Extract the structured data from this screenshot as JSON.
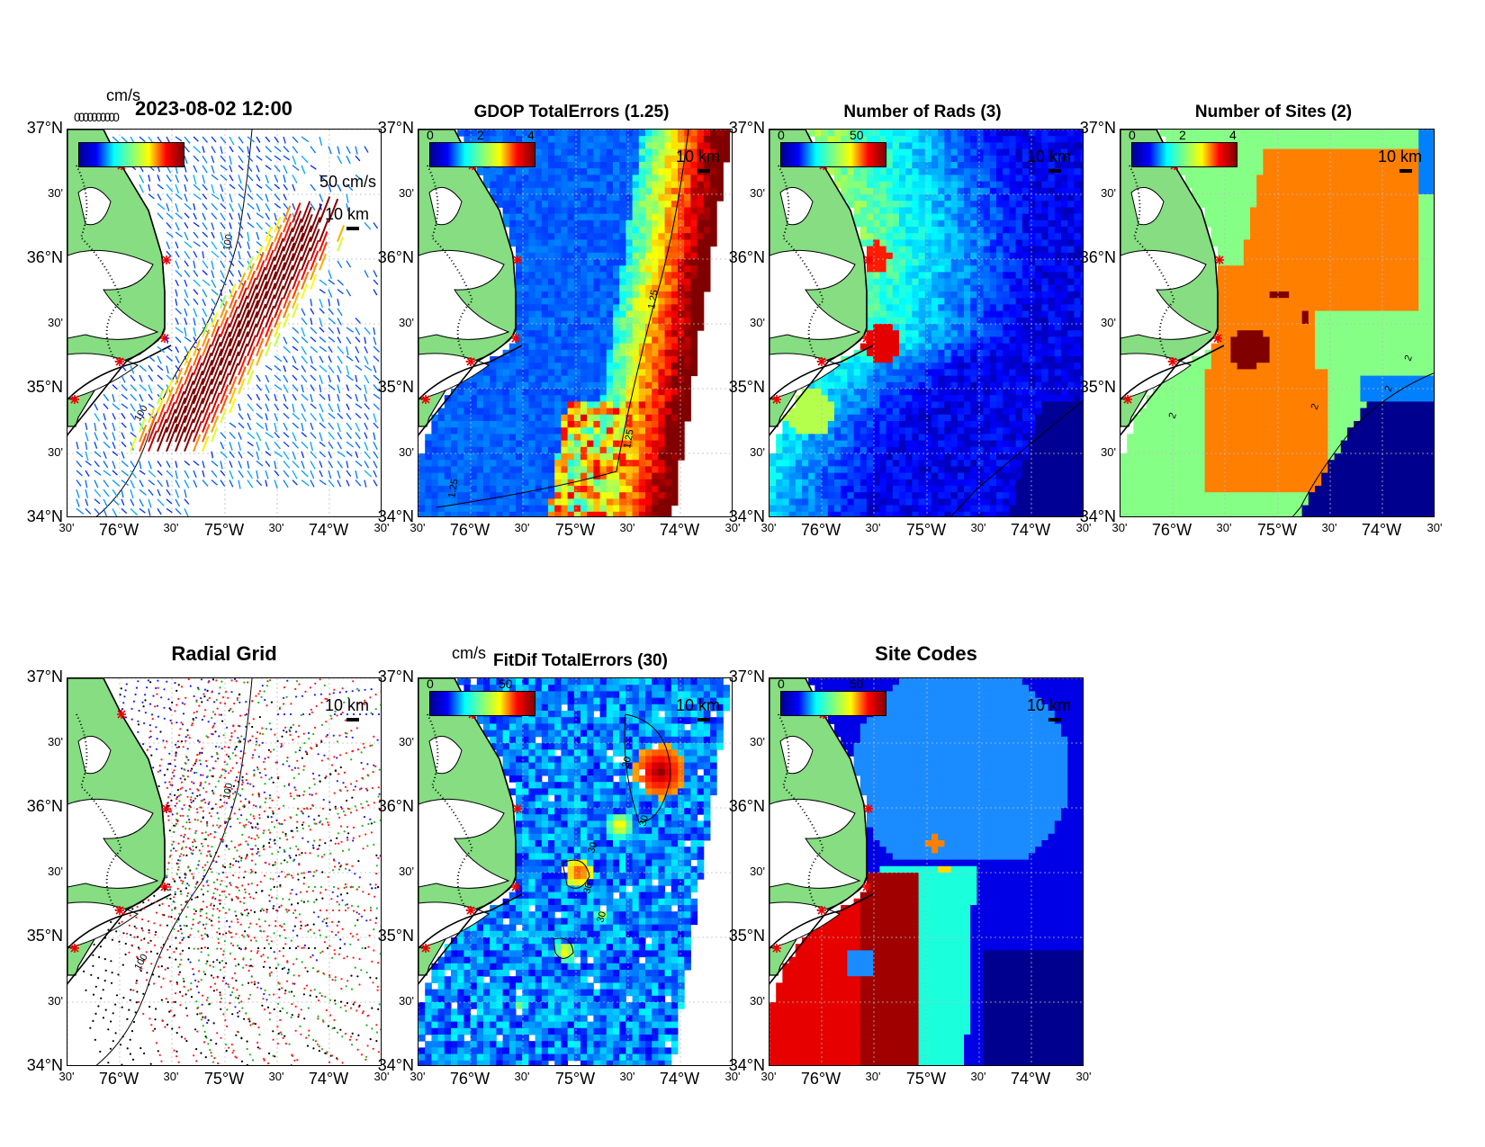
{
  "panels": {
    "vectors": {
      "title": "2023-08-02 12:00",
      "unit": "cm/s",
      "legend_text": "0000000000",
      "vector_scale": "50 cm/s",
      "scale_km": "10 km",
      "isobath": "100"
    },
    "gdop": {
      "title": "GDOP TotalErrors (1.25)",
      "scale_km": "10 km",
      "cbar_ticks": [
        "0",
        "2",
        "4"
      ],
      "contour": "1.25"
    },
    "rads": {
      "title": "Number of Rads (3)",
      "scale_km": "10 km",
      "cbar_ticks": [
        "0",
        "50"
      ]
    },
    "sites": {
      "title": "Number of Sites (2)",
      "scale_km": "10 km",
      "cbar_ticks": [
        "0",
        "2",
        "4"
      ],
      "contour": "2"
    },
    "radial": {
      "title": "Radial Grid",
      "scale_km": "10 km",
      "isobath": "100"
    },
    "fitdif": {
      "title": "FitDif TotalErrors (30)",
      "unit": "cm/s",
      "scale_km": "10 km",
      "cbar_ticks": [
        "0",
        "50"
      ],
      "contour": "30"
    },
    "sitecodes": {
      "title": "Site Codes",
      "scale_km": "10 km",
      "cbar_ticks": [
        "0",
        "50"
      ]
    }
  },
  "axes": {
    "y_major": [
      "37°N",
      "36°N",
      "35°N",
      "34°N"
    ],
    "y_minor": "30'",
    "x_major": [
      "76°W",
      "75°W",
      "74°W"
    ],
    "x_minor": "30'",
    "lat_range": [
      34,
      37
    ],
    "lon_range": [
      -76.5,
      -73.5
    ]
  },
  "colors": {
    "land": "#86dd82",
    "site_marker": "#e00000",
    "ocean_bg": "#ffffff"
  }
}
